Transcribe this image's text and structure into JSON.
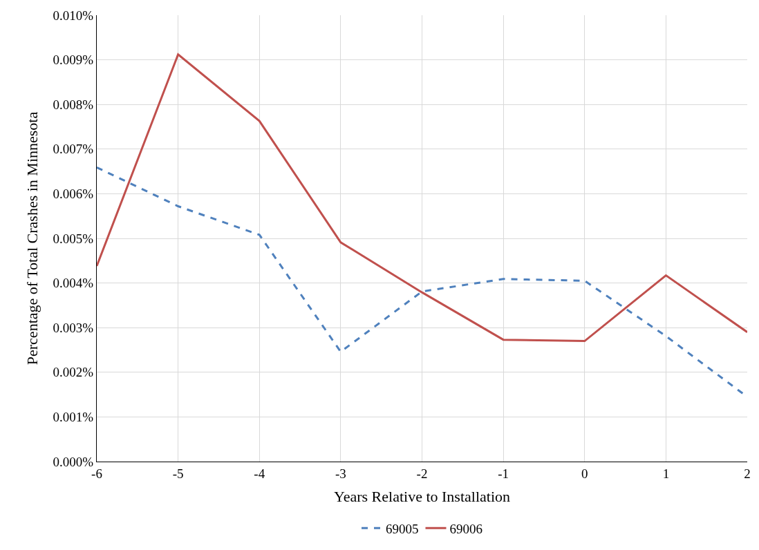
{
  "chart_data": {
    "type": "line",
    "xlabel": "Years Relative to Installation",
    "ylabel": "Percentage of Total Crashes in Minnesota",
    "x": [
      -6,
      -5,
      -4,
      -3,
      -2,
      -1,
      0,
      1,
      2
    ],
    "series": [
      {
        "name": "69005",
        "color": "#4f81bd",
        "line_style": "dashed",
        "values": [
          0.00659,
          0.00572,
          0.00508,
          0.00246,
          0.00381,
          0.00409,
          0.00405,
          0.00281,
          0.00145
        ]
      },
      {
        "name": "69006",
        "color": "#c0504d",
        "line_style": "solid",
        "values": [
          0.00438,
          0.00912,
          0.00763,
          0.00491,
          0.00379,
          0.00273,
          0.0027,
          0.00417,
          0.0029
        ]
      }
    ],
    "xlim": [
      -6,
      2
    ],
    "xticks": [
      -6,
      -5,
      -4,
      -3,
      -2,
      -1,
      0,
      1,
      2
    ],
    "ylim": [
      0,
      0.01
    ],
    "yticks": [
      {
        "value": 0,
        "label": "0.000%"
      },
      {
        "value": 0.001,
        "label": "0.001%"
      },
      {
        "value": 0.002,
        "label": "0.002%"
      },
      {
        "value": 0.003,
        "label": "0.003%"
      },
      {
        "value": 0.004,
        "label": "0.004%"
      },
      {
        "value": 0.005,
        "label": "0.005%"
      },
      {
        "value": 0.006,
        "label": "0.006%"
      },
      {
        "value": 0.007,
        "label": "0.007%"
      },
      {
        "value": 0.008,
        "label": "0.008%"
      },
      {
        "value": 0.009,
        "label": "0.009%"
      },
      {
        "value": 0.01,
        "label": "0.010%"
      }
    ],
    "grid": true,
    "legend": "bottom",
    "marker": "none"
  }
}
